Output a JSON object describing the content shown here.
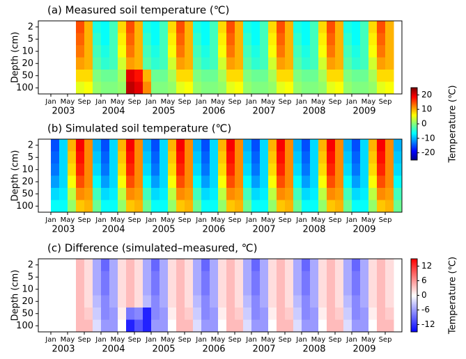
{
  "chart_data": [
    {
      "type": "heatmap",
      "title": "(a) Measured soil temperature  (℃)",
      "y_label": "Depth (cm)",
      "cmap": "jet",
      "clim": [
        -25,
        25
      ],
      "colorbar": {
        "label": "Temperature (℃)",
        "ticks": [
          -20,
          -10,
          0,
          10,
          20
        ]
      },
      "rows": [
        2,
        5,
        10,
        20,
        50,
        100
      ],
      "xlim": [
        -3,
        84
      ],
      "x": [
        0,
        2,
        4,
        6,
        8,
        10,
        12,
        14,
        16,
        18,
        20,
        22,
        24,
        26,
        28,
        30,
        32,
        34,
        36,
        38,
        40,
        42,
        44,
        46,
        48,
        50,
        52,
        54,
        56,
        58,
        60,
        62,
        64,
        66,
        68,
        70,
        72,
        74,
        76,
        78,
        80,
        82
      ],
      "xticks": [
        {
          "value": 0,
          "label": "Jan"
        },
        {
          "value": 4,
          "label": "May"
        },
        {
          "value": 8,
          "label": "Sep"
        },
        {
          "value": 12,
          "label": "Jan"
        },
        {
          "value": 16,
          "label": "May"
        },
        {
          "value": 20,
          "label": "Sep"
        },
        {
          "value": 24,
          "label": "Jan"
        },
        {
          "value": 28,
          "label": "May"
        },
        {
          "value": 32,
          "label": "Sep"
        },
        {
          "value": 36,
          "label": "Jan"
        },
        {
          "value": 40,
          "label": "May"
        },
        {
          "value": 44,
          "label": "Sep"
        },
        {
          "value": 48,
          "label": "Jan"
        },
        {
          "value": 52,
          "label": "May"
        },
        {
          "value": 56,
          "label": "Sep"
        },
        {
          "value": 60,
          "label": "Jan"
        },
        {
          "value": 64,
          "label": "May"
        },
        {
          "value": 68,
          "label": "Sep"
        },
        {
          "value": 72,
          "label": "Jan"
        },
        {
          "value": 76,
          "label": "May"
        },
        {
          "value": 80,
          "label": "Sep"
        }
      ],
      "year_labels": [
        {
          "value": 3,
          "label": "2003"
        },
        {
          "value": 15,
          "label": "2004"
        },
        {
          "value": 27,
          "label": "2005"
        },
        {
          "value": 39,
          "label": "2006"
        },
        {
          "value": 51,
          "label": "2007"
        },
        {
          "value": 63,
          "label": "2008"
        },
        {
          "value": 75,
          "label": "2009"
        }
      ],
      "values": [
        [
          null,
          null,
          null,
          15,
          10,
          -5,
          -6,
          -3,
          8,
          15,
          10,
          -5,
          -6,
          -3,
          8,
          15,
          10,
          -5,
          -6,
          -3,
          8,
          15,
          10,
          -5,
          -6,
          -3,
          8,
          15,
          10,
          -5,
          -6,
          -3,
          8,
          15,
          10,
          -5,
          -6,
          -3,
          8,
          15,
          10,
          null
        ],
        [
          null,
          null,
          null,
          14,
          10,
          -4,
          -6,
          -3,
          7,
          14,
          10,
          -4,
          -6,
          -3,
          7,
          14,
          10,
          -4,
          -6,
          -3,
          7,
          14,
          10,
          -4,
          -6,
          -3,
          7,
          14,
          10,
          -4,
          -6,
          -3,
          7,
          14,
          10,
          -4,
          -6,
          -3,
          7,
          14,
          10,
          null
        ],
        [
          null,
          null,
          null,
          13,
          10,
          -3,
          -5,
          -3,
          6,
          13,
          10,
          -3,
          -5,
          -3,
          6,
          13,
          10,
          -3,
          -5,
          -3,
          6,
          13,
          10,
          -3,
          -5,
          -3,
          6,
          13,
          10,
          -3,
          -5,
          -3,
          6,
          13,
          10,
          -3,
          -5,
          -3,
          6,
          13,
          10,
          null
        ],
        [
          null,
          null,
          null,
          11,
          10,
          -2,
          -4,
          -3,
          4,
          11,
          10,
          -2,
          -4,
          -3,
          4,
          11,
          10,
          -2,
          -4,
          -3,
          4,
          11,
          10,
          -2,
          -4,
          -3,
          4,
          11,
          10,
          -2,
          -4,
          -3,
          4,
          11,
          10,
          -2,
          -4,
          -3,
          4,
          11,
          10,
          null
        ],
        [
          null,
          null,
          null,
          8,
          8,
          0,
          -1,
          -1,
          2,
          20,
          18,
          10,
          -1,
          -1,
          2,
          8,
          8,
          0,
          -1,
          -1,
          2,
          8,
          8,
          0,
          -1,
          -1,
          2,
          8,
          8,
          0,
          -1,
          -1,
          2,
          8,
          8,
          0,
          -1,
          -1,
          2,
          8,
          8,
          null
        ],
        [
          null,
          null,
          null,
          5,
          6,
          1,
          0,
          0,
          1,
          22,
          20,
          12,
          0,
          0,
          1,
          5,
          6,
          1,
          0,
          0,
          1,
          5,
          6,
          1,
          0,
          0,
          1,
          5,
          6,
          1,
          0,
          0,
          1,
          5,
          6,
          1,
          0,
          0,
          1,
          5,
          6,
          null
        ]
      ]
    },
    {
      "type": "heatmap",
      "title": "(b) Simulated soil temperature  (℃)",
      "y_label": "Depth (cm)",
      "cmap": "jet",
      "clim": [
        -25,
        25
      ],
      "rows": [
        2,
        5,
        10,
        20,
        50,
        100
      ],
      "xlim": [
        -3,
        84
      ],
      "x": [
        0,
        2,
        4,
        6,
        8,
        10,
        12,
        14,
        16,
        18,
        20,
        22,
        24,
        26,
        28,
        30,
        32,
        34,
        36,
        38,
        40,
        42,
        44,
        46,
        48,
        50,
        52,
        54,
        56,
        58,
        60,
        62,
        64,
        66,
        68,
        70,
        72,
        74,
        76,
        78,
        80,
        82
      ],
      "xticks": [
        {
          "value": 0,
          "label": "Jan"
        },
        {
          "value": 4,
          "label": "May"
        },
        {
          "value": 8,
          "label": "Sep"
        },
        {
          "value": 12,
          "label": "Jan"
        },
        {
          "value": 16,
          "label": "May"
        },
        {
          "value": 20,
          "label": "Sep"
        },
        {
          "value": 24,
          "label": "Jan"
        },
        {
          "value": 28,
          "label": "May"
        },
        {
          "value": 32,
          "label": "Sep"
        },
        {
          "value": 36,
          "label": "Jan"
        },
        {
          "value": 40,
          "label": "May"
        },
        {
          "value": 44,
          "label": "Sep"
        },
        {
          "value": 48,
          "label": "Jan"
        },
        {
          "value": 52,
          "label": "May"
        },
        {
          "value": 56,
          "label": "Sep"
        },
        {
          "value": 60,
          "label": "Jan"
        },
        {
          "value": 64,
          "label": "May"
        },
        {
          "value": 68,
          "label": "Sep"
        },
        {
          "value": 72,
          "label": "Jan"
        },
        {
          "value": 76,
          "label": "May"
        },
        {
          "value": 80,
          "label": "Sep"
        }
      ],
      "year_labels": [
        {
          "value": 3,
          "label": "2003"
        },
        {
          "value": 15,
          "label": "2004"
        },
        {
          "value": 27,
          "label": "2005"
        },
        {
          "value": 39,
          "label": "2006"
        },
        {
          "value": 51,
          "label": "2007"
        },
        {
          "value": 63,
          "label": "2008"
        },
        {
          "value": 75,
          "label": "2009"
        }
      ],
      "values": [
        [
          -15,
          -8,
          10,
          19,
          12,
          -10,
          -15,
          -8,
          10,
          19,
          12,
          -10,
          -15,
          -8,
          10,
          19,
          12,
          -10,
          -15,
          -8,
          10,
          19,
          12,
          -10,
          -15,
          -8,
          10,
          19,
          12,
          -10,
          -15,
          -8,
          10,
          19,
          12,
          -10,
          -15,
          -8,
          10,
          19,
          12,
          -10
        ],
        [
          -14,
          -8,
          9,
          18,
          12,
          -9,
          -14,
          -8,
          9,
          18,
          12,
          -9,
          -14,
          -8,
          9,
          18,
          12,
          -9,
          -14,
          -8,
          9,
          18,
          12,
          -9,
          -14,
          -8,
          9,
          18,
          12,
          -9,
          -14,
          -8,
          9,
          18,
          12,
          -9,
          -14,
          -8,
          9,
          18,
          12,
          -9
        ],
        [
          -13,
          -8,
          8,
          17,
          12,
          -8,
          -13,
          -8,
          8,
          17,
          12,
          -8,
          -13,
          -8,
          8,
          17,
          12,
          -8,
          -13,
          -8,
          8,
          17,
          12,
          -8,
          -13,
          -8,
          8,
          17,
          12,
          -8,
          -13,
          -8,
          8,
          17,
          12,
          -8,
          -13,
          -8,
          8,
          17,
          12,
          -8
        ],
        [
          -11,
          -8,
          6,
          15,
          12,
          -6,
          -11,
          -8,
          6,
          15,
          12,
          -6,
          -11,
          -8,
          6,
          15,
          12,
          -6,
          -11,
          -8,
          6,
          15,
          12,
          -6,
          -11,
          -8,
          6,
          15,
          12,
          -6,
          -11,
          -8,
          6,
          15,
          12,
          -6,
          -11,
          -8,
          6,
          15,
          12,
          -6
        ],
        [
          -8,
          -7,
          3,
          12,
          11,
          -3,
          -8,
          -7,
          3,
          12,
          11,
          -3,
          -8,
          -7,
          3,
          12,
          11,
          -3,
          -8,
          -7,
          3,
          12,
          11,
          -3,
          -8,
          -7,
          3,
          12,
          11,
          -3,
          -8,
          -7,
          3,
          12,
          11,
          -3,
          -8,
          -7,
          3,
          12,
          11,
          -3
        ],
        [
          -6,
          -6,
          1,
          9,
          10,
          -1,
          -6,
          -6,
          1,
          9,
          10,
          -1,
          -6,
          -6,
          1,
          9,
          10,
          -1,
          -6,
          -6,
          1,
          9,
          10,
          -1,
          -6,
          -6,
          1,
          9,
          10,
          -1,
          -6,
          -6,
          1,
          9,
          10,
          -1,
          -6,
          -6,
          1,
          9,
          10,
          -1
        ]
      ]
    },
    {
      "type": "heatmap",
      "title": "(c) Difference (simulated–measured, ℃)",
      "y_label": "Depth (cm)",
      "cmap": "bwr",
      "clim": [
        -15,
        15
      ],
      "colorbar": {
        "label": "Temperature (℃)",
        "ticks": [
          -12,
          -6,
          0,
          6,
          12
        ]
      },
      "rows": [
        2,
        5,
        10,
        20,
        50,
        100
      ],
      "xlim": [
        -3,
        84
      ],
      "x": [
        0,
        2,
        4,
        6,
        8,
        10,
        12,
        14,
        16,
        18,
        20,
        22,
        24,
        26,
        28,
        30,
        32,
        34,
        36,
        38,
        40,
        42,
        44,
        46,
        48,
        50,
        52,
        54,
        56,
        58,
        60,
        62,
        64,
        66,
        68,
        70,
        72,
        74,
        76,
        78,
        80,
        82
      ],
      "xticks": [
        {
          "value": 0,
          "label": "Jan"
        },
        {
          "value": 4,
          "label": "May"
        },
        {
          "value": 8,
          "label": "Sep"
        },
        {
          "value": 12,
          "label": "Jan"
        },
        {
          "value": 16,
          "label": "May"
        },
        {
          "value": 20,
          "label": "Sep"
        },
        {
          "value": 24,
          "label": "Jan"
        },
        {
          "value": 28,
          "label": "May"
        },
        {
          "value": 32,
          "label": "Sep"
        },
        {
          "value": 36,
          "label": "Jan"
        },
        {
          "value": 40,
          "label": "May"
        },
        {
          "value": 44,
          "label": "Sep"
        },
        {
          "value": 48,
          "label": "Jan"
        },
        {
          "value": 52,
          "label": "May"
        },
        {
          "value": 56,
          "label": "Sep"
        },
        {
          "value": 60,
          "label": "Jan"
        },
        {
          "value": 64,
          "label": "May"
        },
        {
          "value": 68,
          "label": "Sep"
        },
        {
          "value": 72,
          "label": "Jan"
        },
        {
          "value": 76,
          "label": "May"
        },
        {
          "value": 80,
          "label": "Sep"
        }
      ],
      "year_labels": [
        {
          "value": 3,
          "label": "2003"
        },
        {
          "value": 15,
          "label": "2004"
        },
        {
          "value": 27,
          "label": "2005"
        },
        {
          "value": 39,
          "label": "2006"
        },
        {
          "value": 51,
          "label": "2007"
        },
        {
          "value": 63,
          "label": "2008"
        },
        {
          "value": 75,
          "label": "2009"
        }
      ],
      "values": [
        [
          null,
          null,
          null,
          4,
          2,
          -5,
          -9,
          -5,
          2,
          4,
          2,
          -5,
          -9,
          -5,
          2,
          4,
          2,
          -5,
          -9,
          -5,
          2,
          4,
          2,
          -5,
          -9,
          -5,
          2,
          4,
          2,
          -5,
          -9,
          -5,
          2,
          4,
          2,
          -5,
          -9,
          -5,
          2,
          4,
          2,
          null
        ],
        [
          null,
          null,
          null,
          4,
          2,
          -5,
          -8,
          -5,
          2,
          4,
          2,
          -5,
          -8,
          -5,
          2,
          4,
          2,
          -5,
          -8,
          -5,
          2,
          4,
          2,
          -5,
          -8,
          -5,
          2,
          4,
          2,
          -5,
          -8,
          -5,
          2,
          4,
          2,
          -5,
          -8,
          -5,
          2,
          4,
          2,
          null
        ],
        [
          null,
          null,
          null,
          4,
          2,
          -5,
          -8,
          -5,
          2,
          4,
          2,
          -5,
          -8,
          -5,
          2,
          4,
          2,
          -5,
          -8,
          -5,
          2,
          4,
          2,
          -5,
          -8,
          -5,
          2,
          4,
          2,
          -5,
          -8,
          -5,
          2,
          4,
          2,
          -5,
          -8,
          -5,
          2,
          4,
          2,
          null
        ],
        [
          null,
          null,
          null,
          4,
          2,
          -4,
          -7,
          -5,
          2,
          4,
          2,
          -4,
          -7,
          -5,
          2,
          4,
          2,
          -4,
          -7,
          -5,
          2,
          4,
          2,
          -4,
          -7,
          -5,
          2,
          4,
          2,
          -4,
          -7,
          -5,
          2,
          4,
          2,
          -4,
          -7,
          -5,
          2,
          4,
          2,
          null
        ],
        [
          null,
          null,
          null,
          4,
          3,
          -3,
          -7,
          -6,
          1,
          -8,
          -7,
          -13,
          -7,
          -6,
          1,
          4,
          3,
          -3,
          -7,
          -6,
          1,
          4,
          3,
          -3,
          -7,
          -6,
          1,
          4,
          3,
          -3,
          -7,
          -6,
          1,
          4,
          3,
          -3,
          -7,
          -6,
          1,
          4,
          3,
          null
        ],
        [
          null,
          null,
          null,
          4,
          4,
          -2,
          -6,
          -6,
          0,
          -13,
          -10,
          -13,
          -6,
          -6,
          0,
          4,
          4,
          -2,
          -6,
          -6,
          0,
          4,
          4,
          -2,
          -6,
          -6,
          0,
          4,
          4,
          -2,
          -6,
          -6,
          0,
          4,
          4,
          -2,
          -6,
          -6,
          0,
          4,
          4,
          null
        ]
      ]
    }
  ]
}
